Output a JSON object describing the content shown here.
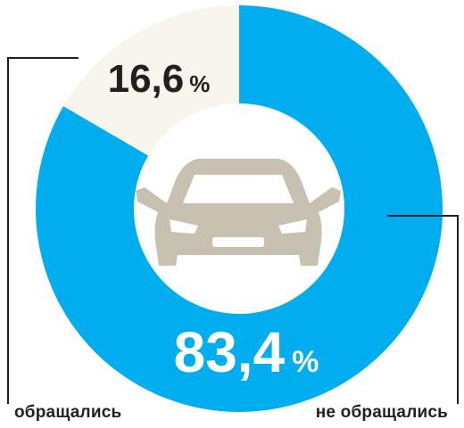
{
  "chart_data": {
    "type": "pie",
    "donut": true,
    "categories": [
      "обращались",
      "не обращались"
    ],
    "values": [
      16.6,
      83.4
    ],
    "value_labels": [
      "16,6",
      "83,4"
    ],
    "unit": "%",
    "colors": [
      "#f7f5ec",
      "#00aeef"
    ],
    "center_icon": "car-front-icon",
    "center_icon_color": "#c8c0b0"
  },
  "labels": {
    "left": "обращались",
    "right": "не обращались"
  }
}
